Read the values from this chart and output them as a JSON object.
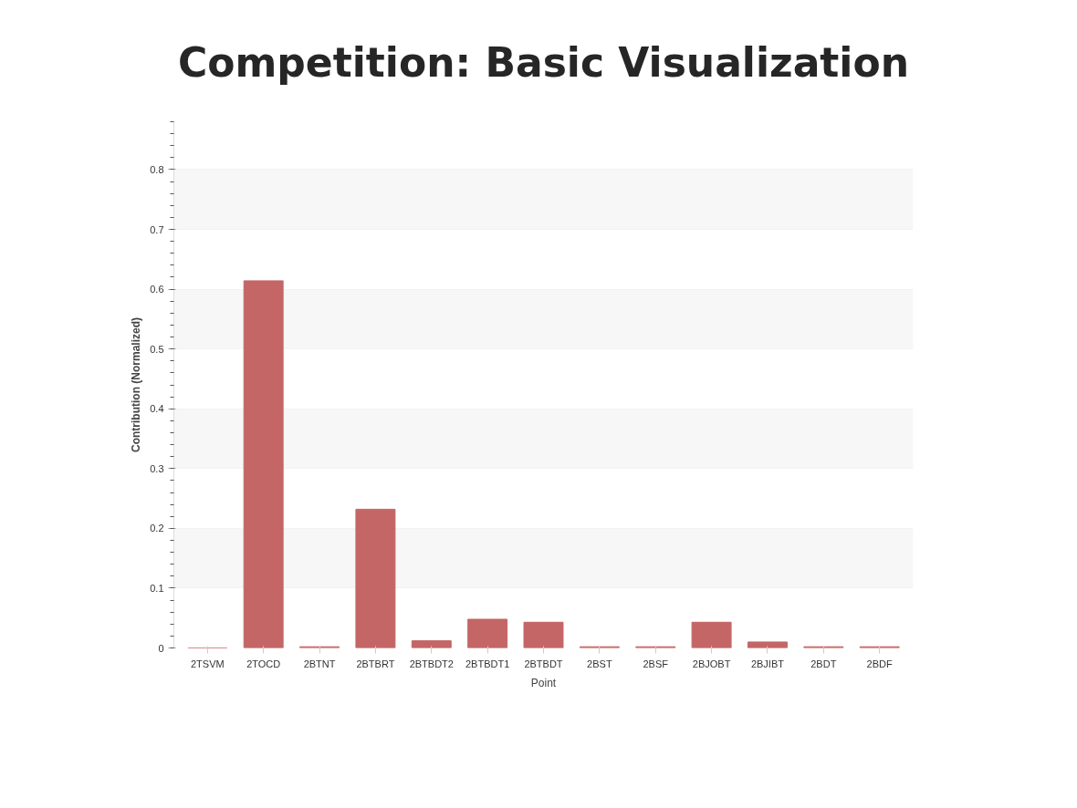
{
  "chart_data": {
    "type": "bar",
    "title": "Competition: Basic Visualization",
    "xlabel": "Point",
    "ylabel": "Contribution (Normalized)",
    "categories": [
      "2TSVM",
      "2TOCD",
      "2BTNT",
      "2BTBRT",
      "2BTBDT2",
      "2BTBDT1",
      "2BTBDT",
      "2BST",
      "2BSF",
      "2BJOBT",
      "2BJIBT",
      "2BDT",
      "2BDF"
    ],
    "values": [
      0,
      0.614,
      0.002,
      0.232,
      0.012,
      0.048,
      0.043,
      0.002,
      0.002,
      0.043,
      0.01,
      0.002,
      0.002
    ],
    "color": "#c46666",
    "ylim": [
      0,
      0.88
    ],
    "yticks": [
      0,
      0.1,
      0.2,
      0.3,
      0.4,
      0.5,
      0.6,
      0.7,
      0.8
    ],
    "grid": "y"
  }
}
